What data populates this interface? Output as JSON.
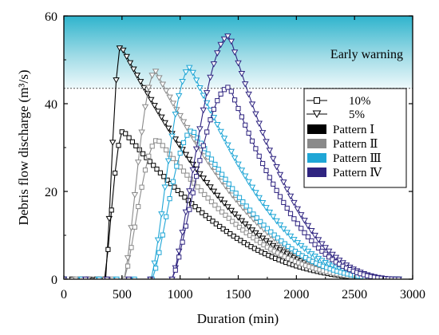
{
  "chart_data": {
    "type": "line",
    "xlabel": "Duration (min)",
    "ylabel": "Debris flow discharge (m³/s)",
    "xlim": [
      0,
      3000
    ],
    "ylim": [
      0,
      60
    ],
    "x_ticks": [
      0,
      500,
      1000,
      1500,
      2000,
      2500,
      3000
    ],
    "y_ticks": [
      0,
      20,
      40,
      60
    ],
    "x_ticks_text": [
      "0",
      "500",
      "1000",
      "1500",
      "2000",
      "2500",
      "3000"
    ],
    "y_ticks_text": [
      "0",
      "20",
      "40",
      "60"
    ],
    "grid": false,
    "legend_position": "right",
    "warning": {
      "label": "Early warning",
      "threshold": 43.5
    },
    "legend": {
      "frequencies": [
        {
          "label": "10%",
          "marker": "square"
        },
        {
          "label": "5%",
          "marker": "triangle-down"
        }
      ],
      "patterns": [
        {
          "label": "Pattern Ⅰ",
          "color": "#000000"
        },
        {
          "label": "Pattern Ⅱ",
          "color": "#8a8a8a"
        },
        {
          "label": "Pattern Ⅲ",
          "color": "#1fa6d6"
        },
        {
          "label": "Pattern Ⅳ",
          "color": "#2f2480"
        }
      ]
    },
    "series": [
      {
        "pattern": "Pattern Ⅰ",
        "frequency": "5%",
        "color": "#000000",
        "marker": "triangle-down",
        "start": 360,
        "peak_x": 490,
        "peak_y": 53.2,
        "end": 2880
      },
      {
        "pattern": "Pattern Ⅰ",
        "frequency": "10%",
        "color": "#000000",
        "marker": "square",
        "start": 350,
        "peak_x": 510,
        "peak_y": 33.8,
        "end": 2880
      },
      {
        "pattern": "Pattern Ⅱ",
        "frequency": "5%",
        "color": "#8a8a8a",
        "marker": "triangle-down",
        "start": 520,
        "peak_x": 790,
        "peak_y": 47.4,
        "end": 2880
      },
      {
        "pattern": "Pattern Ⅱ",
        "frequency": "10%",
        "color": "#8a8a8a",
        "marker": "square",
        "start": 520,
        "peak_x": 810,
        "peak_y": 31.8,
        "end": 2880
      },
      {
        "pattern": "Pattern Ⅲ",
        "frequency": "5%",
        "color": "#1fa6d6",
        "marker": "triangle-down",
        "start": 750,
        "peak_x": 1090,
        "peak_y": 48.3,
        "end": 2880
      },
      {
        "pattern": "Pattern Ⅲ",
        "frequency": "10%",
        "color": "#1fa6d6",
        "marker": "square",
        "start": 760,
        "peak_x": 1110,
        "peak_y": 33.9,
        "end": 2880
      },
      {
        "pattern": "Pattern Ⅳ",
        "frequency": "5%",
        "color": "#2f2480",
        "marker": "triangle-down",
        "start": 930,
        "peak_x": 1425,
        "peak_y": 55.5,
        "end": 2880
      },
      {
        "pattern": "Pattern Ⅳ",
        "frequency": "10%",
        "color": "#2f2480",
        "marker": "square",
        "start": 930,
        "peak_x": 1425,
        "peak_y": 43.8,
        "end": 2880
      }
    ]
  }
}
